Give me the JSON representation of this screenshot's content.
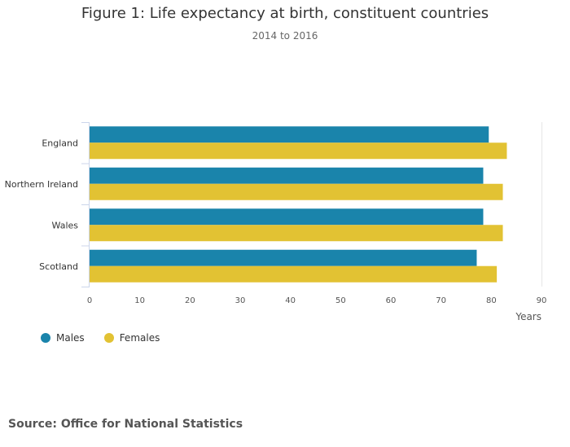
{
  "chart_data": {
    "type": "bar",
    "orientation": "horizontal",
    "title": "Figure 1: Life expectancy at birth, constituent countries",
    "subtitle": "2014 to 2016",
    "categories": [
      "England",
      "Northern Ireland",
      "Wales",
      "Scotland"
    ],
    "series": [
      {
        "name": "Males",
        "color": "#1a84ab",
        "values": [
          79.5,
          78.4,
          78.4,
          77.1
        ]
      },
      {
        "name": "Females",
        "color": "#e2c233",
        "values": [
          83.1,
          82.3,
          82.3,
          81.1
        ]
      }
    ],
    "xlabel": "Years",
    "xlim": [
      0,
      90
    ],
    "xticks": [
      0,
      10,
      20,
      30,
      40,
      50,
      60,
      70,
      80,
      90
    ],
    "grid": false,
    "legend_position": "bottom-left"
  },
  "source": "Source: Office for National Statistics"
}
